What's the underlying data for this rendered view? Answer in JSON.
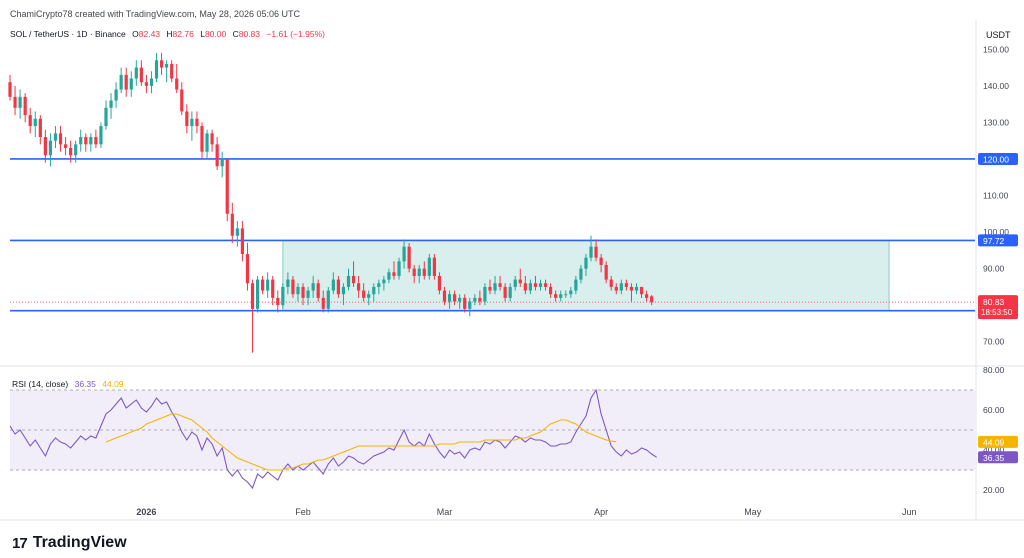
{
  "header": {
    "attribution": "ChamiCrypto78 created with TradingView.com, May 28, 2026 05:06 UTC"
  },
  "symbol": {
    "name": "SOL / TetherUS · 1D · Binance",
    "open_label": "O",
    "open": "82.43",
    "high_label": "H",
    "high": "82.76",
    "low_label": "L",
    "low": "80.00",
    "close_label": "C",
    "close": "80.83",
    "change": "−1.61 (−1.95%)"
  },
  "rsi_legend": {
    "name": "RSI (14, close)",
    "rsi": "36.35",
    "ma": "44.09"
  },
  "brand": {
    "logo": "17",
    "name": "TradingView"
  },
  "colors": {
    "up": "#26a69a",
    "down": "#f23645",
    "level": "#2962ff",
    "box": "#26a69a",
    "rsi": "#7e57c2",
    "rsi_ma": "#f5b400",
    "rsi_band": "#ede7f6"
  },
  "chart_data": [
    {
      "type": "candlestick",
      "title": "SOL / TetherUS · 1D · Binance",
      "y_unit": "USDT",
      "ylim": [
        65,
        152
      ],
      "y_ticks": [
        70,
        80,
        90,
        100,
        110,
        130,
        140,
        150
      ],
      "x_ticks": [
        {
          "label": "2026",
          "date": "2026-01-01"
        },
        {
          "label": "Feb",
          "date": "2026-02-01"
        },
        {
          "label": "Mar",
          "date": "2026-03-01"
        },
        {
          "label": "Apr",
          "date": "2026-04-01"
        },
        {
          "label": "May",
          "date": "2026-05-01"
        },
        {
          "label": "Jun",
          "date": "2026-06-01"
        }
      ],
      "range_start": "2025-12-05",
      "range_end": "2026-06-14",
      "candles_start": "2025-12-05",
      "candles": [
        {
          "o": 141,
          "h": 143,
          "l": 136,
          "c": 137
        },
        {
          "o": 137,
          "h": 140,
          "l": 132,
          "c": 134
        },
        {
          "o": 134,
          "h": 139,
          "l": 131,
          "c": 137
        },
        {
          "o": 137,
          "h": 138,
          "l": 130,
          "c": 132
        },
        {
          "o": 132,
          "h": 134,
          "l": 127,
          "c": 129
        },
        {
          "o": 129,
          "h": 133,
          "l": 126,
          "c": 131
        },
        {
          "o": 131,
          "h": 132,
          "l": 124,
          "c": 126
        },
        {
          "o": 126,
          "h": 128,
          "l": 119,
          "c": 121
        },
        {
          "o": 121,
          "h": 127,
          "l": 118,
          "c": 125
        },
        {
          "o": 125,
          "h": 129,
          "l": 123,
          "c": 127
        },
        {
          "o": 127,
          "h": 129,
          "l": 122,
          "c": 124
        },
        {
          "o": 124,
          "h": 126,
          "l": 121,
          "c": 123
        },
        {
          "o": 123,
          "h": 125,
          "l": 119,
          "c": 121
        },
        {
          "o": 121,
          "h": 125,
          "l": 119,
          "c": 124
        },
        {
          "o": 124,
          "h": 128,
          "l": 122,
          "c": 126
        },
        {
          "o": 126,
          "h": 127,
          "l": 122,
          "c": 124
        },
        {
          "o": 124,
          "h": 127,
          "l": 122,
          "c": 126
        },
        {
          "o": 126,
          "h": 128,
          "l": 123,
          "c": 124
        },
        {
          "o": 124,
          "h": 130,
          "l": 123,
          "c": 129
        },
        {
          "o": 129,
          "h": 136,
          "l": 128,
          "c": 134
        },
        {
          "o": 134,
          "h": 138,
          "l": 131,
          "c": 136
        },
        {
          "o": 136,
          "h": 141,
          "l": 134,
          "c": 139
        },
        {
          "o": 139,
          "h": 145,
          "l": 138,
          "c": 143
        },
        {
          "o": 143,
          "h": 145,
          "l": 137,
          "c": 139
        },
        {
          "o": 139,
          "h": 144,
          "l": 137,
          "c": 142
        },
        {
          "o": 142,
          "h": 147,
          "l": 140,
          "c": 145
        },
        {
          "o": 145,
          "h": 147,
          "l": 140,
          "c": 141
        },
        {
          "o": 141,
          "h": 143,
          "l": 138,
          "c": 140
        },
        {
          "o": 140,
          "h": 144,
          "l": 138,
          "c": 142
        },
        {
          "o": 142,
          "h": 149,
          "l": 141,
          "c": 147
        },
        {
          "o": 147,
          "h": 149,
          "l": 143,
          "c": 145
        },
        {
          "o": 145,
          "h": 147,
          "l": 141,
          "c": 146
        },
        {
          "o": 146,
          "h": 147,
          "l": 141,
          "c": 142
        },
        {
          "o": 142,
          "h": 146,
          "l": 138,
          "c": 139
        },
        {
          "o": 139,
          "h": 141,
          "l": 132,
          "c": 133
        },
        {
          "o": 133,
          "h": 135,
          "l": 127,
          "c": 129
        },
        {
          "o": 129,
          "h": 133,
          "l": 125,
          "c": 131
        },
        {
          "o": 131,
          "h": 133,
          "l": 127,
          "c": 129
        },
        {
          "o": 129,
          "h": 130,
          "l": 120,
          "c": 122
        },
        {
          "o": 122,
          "h": 128,
          "l": 120,
          "c": 127
        },
        {
          "o": 127,
          "h": 128,
          "l": 122,
          "c": 124
        },
        {
          "o": 124,
          "h": 126,
          "l": 117,
          "c": 118
        },
        {
          "o": 118,
          "h": 122,
          "l": 115,
          "c": 120
        },
        {
          "o": 120,
          "h": 120,
          "l": 103,
          "c": 105
        },
        {
          "o": 105,
          "h": 108,
          "l": 97,
          "c": 99
        },
        {
          "o": 99,
          "h": 103,
          "l": 96,
          "c": 101
        },
        {
          "o": 101,
          "h": 103,
          "l": 92,
          "c": 94
        },
        {
          "o": 94,
          "h": 97,
          "l": 84,
          "c": 86
        },
        {
          "o": 86,
          "h": 87,
          "l": 67,
          "c": 79
        },
        {
          "o": 79,
          "h": 88,
          "l": 78,
          "c": 87
        },
        {
          "o": 87,
          "h": 88,
          "l": 83,
          "c": 84
        },
        {
          "o": 84,
          "h": 89,
          "l": 82,
          "c": 87
        },
        {
          "o": 87,
          "h": 88,
          "l": 80,
          "c": 82
        },
        {
          "o": 82,
          "h": 84,
          "l": 78,
          "c": 80
        },
        {
          "o": 80,
          "h": 86,
          "l": 79,
          "c": 85
        },
        {
          "o": 85,
          "h": 89,
          "l": 83,
          "c": 87
        },
        {
          "o": 87,
          "h": 88,
          "l": 82,
          "c": 83
        },
        {
          "o": 83,
          "h": 86,
          "l": 81,
          "c": 85
        },
        {
          "o": 85,
          "h": 86,
          "l": 80,
          "c": 82
        },
        {
          "o": 82,
          "h": 85,
          "l": 80,
          "c": 84
        },
        {
          "o": 84,
          "h": 88,
          "l": 82,
          "c": 86
        },
        {
          "o": 86,
          "h": 87,
          "l": 81,
          "c": 82
        },
        {
          "o": 82,
          "h": 84,
          "l": 78,
          "c": 79
        },
        {
          "o": 79,
          "h": 85,
          "l": 78,
          "c": 84
        },
        {
          "o": 84,
          "h": 89,
          "l": 83,
          "c": 87
        },
        {
          "o": 87,
          "h": 88,
          "l": 82,
          "c": 83
        },
        {
          "o": 83,
          "h": 86,
          "l": 80,
          "c": 85
        },
        {
          "o": 85,
          "h": 90,
          "l": 84,
          "c": 88
        },
        {
          "o": 88,
          "h": 92,
          "l": 85,
          "c": 86
        },
        {
          "o": 86,
          "h": 88,
          "l": 82,
          "c": 84
        },
        {
          "o": 84,
          "h": 86,
          "l": 81,
          "c": 82
        },
        {
          "o": 82,
          "h": 84,
          "l": 80,
          "c": 83
        },
        {
          "o": 83,
          "h": 86,
          "l": 81,
          "c": 85
        },
        {
          "o": 85,
          "h": 87,
          "l": 83,
          "c": 86
        },
        {
          "o": 86,
          "h": 88,
          "l": 84,
          "c": 87
        },
        {
          "o": 87,
          "h": 90,
          "l": 86,
          "c": 89
        },
        {
          "o": 89,
          "h": 92,
          "l": 87,
          "c": 88
        },
        {
          "o": 88,
          "h": 93,
          "l": 87,
          "c": 92
        },
        {
          "o": 92,
          "h": 98,
          "l": 90,
          "c": 96
        },
        {
          "o": 96,
          "h": 97,
          "l": 89,
          "c": 90
        },
        {
          "o": 90,
          "h": 91,
          "l": 86,
          "c": 88
        },
        {
          "o": 88,
          "h": 91,
          "l": 86,
          "c": 90
        },
        {
          "o": 90,
          "h": 92,
          "l": 87,
          "c": 88
        },
        {
          "o": 88,
          "h": 94,
          "l": 87,
          "c": 93
        },
        {
          "o": 93,
          "h": 94,
          "l": 87,
          "c": 88
        },
        {
          "o": 88,
          "h": 89,
          "l": 83,
          "c": 84
        },
        {
          "o": 84,
          "h": 85,
          "l": 80,
          "c": 81
        },
        {
          "o": 81,
          "h": 84,
          "l": 79,
          "c": 83
        },
        {
          "o": 83,
          "h": 84,
          "l": 80,
          "c": 81
        },
        {
          "o": 81,
          "h": 83,
          "l": 79,
          "c": 82
        },
        {
          "o": 82,
          "h": 83,
          "l": 78,
          "c": 79
        },
        {
          "o": 79,
          "h": 82,
          "l": 77,
          "c": 81
        },
        {
          "o": 81,
          "h": 83,
          "l": 80,
          "c": 82
        },
        {
          "o": 82,
          "h": 84,
          "l": 80,
          "c": 81
        },
        {
          "o": 81,
          "h": 86,
          "l": 80,
          "c": 85
        },
        {
          "o": 85,
          "h": 87,
          "l": 83,
          "c": 84
        },
        {
          "o": 84,
          "h": 88,
          "l": 83,
          "c": 86
        },
        {
          "o": 86,
          "h": 88,
          "l": 84,
          "c": 85
        },
        {
          "o": 85,
          "h": 86,
          "l": 81,
          "c": 82
        },
        {
          "o": 82,
          "h": 86,
          "l": 81,
          "c": 85
        },
        {
          "o": 85,
          "h": 88,
          "l": 84,
          "c": 87
        },
        {
          "o": 87,
          "h": 90,
          "l": 85,
          "c": 86
        },
        {
          "o": 86,
          "h": 88,
          "l": 83,
          "c": 84
        },
        {
          "o": 84,
          "h": 87,
          "l": 83,
          "c": 86
        },
        {
          "o": 86,
          "h": 88,
          "l": 84,
          "c": 85
        },
        {
          "o": 85,
          "h": 87,
          "l": 84,
          "c": 86
        },
        {
          "o": 86,
          "h": 87,
          "l": 84,
          "c": 85
        },
        {
          "o": 85,
          "h": 86,
          "l": 82,
          "c": 83
        },
        {
          "o": 83,
          "h": 84,
          "l": 81,
          "c": 82
        },
        {
          "o": 82,
          "h": 84,
          "l": 81,
          "c": 83
        },
        {
          "o": 83,
          "h": 84,
          "l": 82,
          "c": 83
        },
        {
          "o": 83,
          "h": 85,
          "l": 82,
          "c": 84
        },
        {
          "o": 84,
          "h": 88,
          "l": 83,
          "c": 87
        },
        {
          "o": 87,
          "h": 91,
          "l": 86,
          "c": 90
        },
        {
          "o": 90,
          "h": 94,
          "l": 88,
          "c": 93
        },
        {
          "o": 93,
          "h": 99,
          "l": 92,
          "c": 96
        },
        {
          "o": 96,
          "h": 98,
          "l": 92,
          "c": 93
        },
        {
          "o": 93,
          "h": 94,
          "l": 89,
          "c": 91
        },
        {
          "o": 91,
          "h": 92,
          "l": 86,
          "c": 87
        },
        {
          "o": 87,
          "h": 88,
          "l": 84,
          "c": 85
        },
        {
          "o": 85,
          "h": 86,
          "l": 83,
          "c": 84
        },
        {
          "o": 84,
          "h": 87,
          "l": 83,
          "c": 86
        },
        {
          "o": 86,
          "h": 87,
          "l": 84,
          "c": 85
        },
        {
          "o": 85,
          "h": 86,
          "l": 81,
          "c": 84
        },
        {
          "o": 84,
          "h": 86,
          "l": 83,
          "c": 85
        },
        {
          "o": 85,
          "h": 85,
          "l": 82,
          "c": 83
        },
        {
          "o": 83,
          "h": 84,
          "l": 81,
          "c": 82
        },
        {
          "o": 82.43,
          "h": 82.76,
          "l": 80.0,
          "c": 80.83
        }
      ],
      "horizontal_levels": [
        {
          "value": 120.0,
          "label": "120.00"
        },
        {
          "value": 97.72,
          "label": "97.72"
        },
        {
          "value": 78.5,
          "label": "78.50"
        }
      ],
      "range_box": {
        "from": "2026-01-28",
        "to": "2026-05-28",
        "top": 97.72,
        "bottom": 78.5
      },
      "last_price": {
        "value": "80.83",
        "countdown": "18:53:50"
      }
    },
    {
      "type": "line",
      "title": "RSI (14, close)",
      "ylim": [
        15,
        80
      ],
      "y_ticks": [
        20,
        40,
        60,
        80
      ],
      "band": [
        30,
        70
      ],
      "series": [
        {
          "name": "RSI",
          "start": "2025-12-05",
          "values": [
            52,
            48,
            50,
            46,
            42,
            45,
            41,
            37,
            43,
            46,
            44,
            43,
            41,
            44,
            47,
            45,
            47,
            46,
            52,
            58,
            60,
            63,
            66,
            61,
            63,
            65,
            61,
            59,
            62,
            66,
            63,
            64,
            59,
            55,
            49,
            45,
            49,
            47,
            40,
            46,
            43,
            37,
            41,
            30,
            27,
            30,
            26,
            24,
            21,
            28,
            26,
            29,
            27,
            25,
            30,
            33,
            30,
            32,
            30,
            32,
            34,
            31,
            28,
            33,
            36,
            32,
            34,
            37,
            36,
            34,
            33,
            35,
            37,
            38,
            39,
            41,
            40,
            45,
            50,
            44,
            42,
            44,
            42,
            48,
            43,
            39,
            36,
            40,
            38,
            39,
            36,
            40,
            41,
            40,
            44,
            43,
            45,
            44,
            41,
            44,
            47,
            46,
            44,
            46,
            45,
            45,
            44,
            42,
            42,
            43,
            43,
            44,
            49,
            53,
            57,
            66,
            70,
            58,
            50,
            42,
            39,
            37,
            40,
            38,
            39,
            41,
            40,
            38,
            36.35
          ],
          "last_label": "36.35"
        },
        {
          "name": "RSI-based MA",
          "start": "2025-12-24",
          "values": [
            44,
            45,
            46,
            47,
            48,
            49,
            50,
            51,
            53,
            54,
            55,
            56,
            57,
            58,
            58,
            57,
            56,
            55,
            53,
            51,
            49,
            46,
            44,
            42,
            40,
            38,
            36,
            35,
            34,
            33,
            32,
            31,
            30,
            30,
            30,
            30,
            31,
            31,
            32,
            33,
            33,
            34,
            35,
            35,
            36,
            37,
            38,
            39,
            40,
            41,
            42,
            42,
            42,
            42,
            42,
            42,
            42,
            42,
            42,
            42,
            42,
            42,
            42,
            42,
            42,
            42,
            43,
            43,
            43,
            43,
            44,
            44,
            44,
            44,
            44,
            45,
            45,
            45,
            45,
            45,
            45,
            45,
            46,
            46,
            47,
            48,
            49,
            51,
            53,
            54,
            55,
            55,
            54,
            53,
            51,
            49,
            48,
            47,
            46,
            45,
            44.5,
            44.09
          ],
          "last_label": "44.09"
        }
      ]
    }
  ]
}
